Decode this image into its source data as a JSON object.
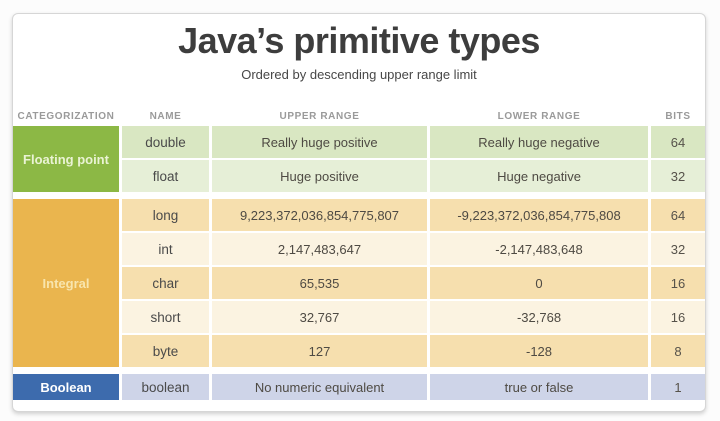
{
  "title": "Java’s primitive types",
  "subtitle": "Ordered by descending upper range limit",
  "columns": [
    "CATEGORIZATION",
    "NAME",
    "UPPER RANGE",
    "LOWER RANGE",
    "BITS"
  ],
  "sections": [
    {
      "category": "Floating point",
      "color": "#8cb845",
      "label_color": "#eaf3d4",
      "row_colors": [
        "#d9e7c2",
        "#e6efd7"
      ],
      "rows": [
        {
          "name": "double",
          "upper": "Really huge positive",
          "lower": "Really huge negative",
          "bits": "64"
        },
        {
          "name": "float",
          "upper": "Huge positive",
          "lower": "Huge negative",
          "bits": "32"
        }
      ]
    },
    {
      "category": "Integral",
      "color": "#eab54e",
      "label_color": "#f8e5ad",
      "row_colors": [
        "#f6dfae",
        "#fbf3e1"
      ],
      "rows": [
        {
          "name": "long",
          "upper": "9,223,372,036,854,775,807",
          "lower": "-9,223,372,036,854,775,808",
          "bits": "64"
        },
        {
          "name": "int",
          "upper": "2,147,483,647",
          "lower": "-2,147,483,648",
          "bits": "32"
        },
        {
          "name": "char",
          "upper": "65,535",
          "lower": "0",
          "bits": "16"
        },
        {
          "name": "short",
          "upper": "32,767",
          "lower": "-32,768",
          "bits": "16"
        },
        {
          "name": "byte",
          "upper": "127",
          "lower": "-128",
          "bits": "8"
        }
      ]
    },
    {
      "category": "Boolean",
      "color": "#3d6bad",
      "label_color": "#ffffff",
      "row_colors": [
        "#ced4e8"
      ],
      "rows": [
        {
          "name": "boolean",
          "upper": "No numeric equivalent",
          "lower": "true or false",
          "bits": "1"
        }
      ]
    }
  ],
  "chart_data": {
    "type": "table",
    "title": "Java’s primitive types",
    "subtitle": "Ordered by descending upper range limit",
    "columns": [
      "CATEGORIZATION",
      "NAME",
      "UPPER RANGE",
      "LOWER RANGE",
      "BITS"
    ],
    "rows": [
      [
        "Floating point",
        "double",
        "Really huge positive",
        "Really huge negative",
        "64"
      ],
      [
        "Floating point",
        "float",
        "Huge positive",
        "Huge negative",
        "32"
      ],
      [
        "Integral",
        "long",
        "9,223,372,036,854,775,807",
        "-9,223,372,036,854,775,808",
        "64"
      ],
      [
        "Integral",
        "int",
        "2,147,483,647",
        "-2,147,483,648",
        "32"
      ],
      [
        "Integral",
        "char",
        "65,535",
        "0",
        "16"
      ],
      [
        "Integral",
        "short",
        "32,767",
        "-32,768",
        "16"
      ],
      [
        "Integral",
        "byte",
        "127",
        "-128",
        "8"
      ],
      [
        "Boolean",
        "boolean",
        "No numeric equivalent",
        "true or false",
        "1"
      ]
    ],
    "legend_position": "none",
    "grid": false
  }
}
